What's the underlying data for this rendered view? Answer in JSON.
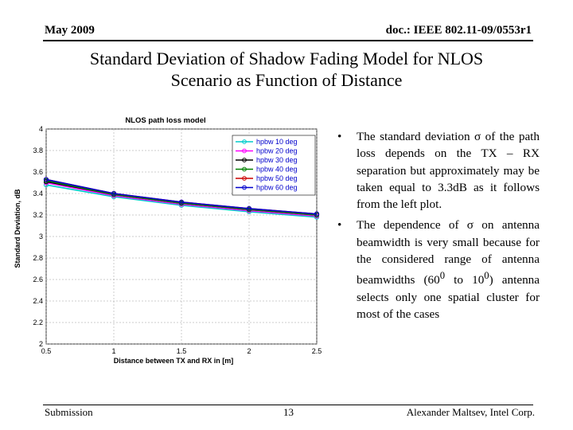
{
  "header": {
    "date": "May 2009",
    "doc_id": "doc.: IEEE 802.11-09/0553r1"
  },
  "title_line1": "Standard Deviation of Shadow Fading Model for NLOS",
  "title_line2": "Scenario as Function of Distance",
  "chart_data": {
    "type": "line",
    "title": "NLOS path loss model",
    "xlabel": "Distance between TX and RX in [m]",
    "ylabel": "Standard Deviation, dB",
    "xlim": [
      0.5,
      2.5
    ],
    "ylim": [
      2,
      4
    ],
    "xticks": [
      "0.5",
      "1",
      "1.5",
      "2",
      "2.5"
    ],
    "yticks": [
      "2",
      "2.2",
      "2.4",
      "2.6",
      "2.8",
      "3",
      "3.2",
      "3.4",
      "3.6",
      "3.8",
      "4"
    ],
    "grid": true,
    "legend_position": "top-right",
    "x": [
      0.5,
      1,
      1.5,
      2,
      2.5
    ],
    "series": [
      {
        "name": "hpbw 10 deg",
        "color": "#00cccc",
        "marker": "circle",
        "values": [
          3.48,
          3.37,
          3.29,
          3.23,
          3.18
        ]
      },
      {
        "name": "hpbw 20 deg",
        "color": "#ff00ff",
        "marker": "circle",
        "values": [
          3.5,
          3.38,
          3.3,
          3.24,
          3.19
        ]
      },
      {
        "name": "hpbw 30 deg",
        "color": "#000000",
        "marker": "circle",
        "values": [
          3.51,
          3.39,
          3.31,
          3.25,
          3.2
        ]
      },
      {
        "name": "hpbw 40 deg",
        "color": "#008000",
        "marker": "circle",
        "values": [
          3.52,
          3.39,
          3.31,
          3.25,
          3.2
        ]
      },
      {
        "name": "hpbw 50 deg",
        "color": "#cc0000",
        "marker": "circle",
        "values": [
          3.53,
          3.4,
          3.32,
          3.26,
          3.21
        ]
      },
      {
        "name": "hpbw 60 deg",
        "color": "#0000cc",
        "marker": "circle",
        "values": [
          3.53,
          3.4,
          3.32,
          3.26,
          3.21
        ]
      }
    ]
  },
  "bullets": {
    "b1": "The standard deviation σ of the path loss depends on the TX – RX separation but approximately may be taken equal to 3.3dB as it follows from the left plot.",
    "b2_part1": "The dependence of σ on antenna beamwidth is very small because for the considered range of antenna beamwidths (60",
    "b2_sup1": "0",
    "b2_part2": " to 10",
    "b2_sup2": "0",
    "b2_part3": ") antenna selects only one spatial cluster for most of the cases"
  },
  "footer": {
    "left": "Submission",
    "page": "13",
    "right": "Alexander Maltsev, Intel Corp."
  }
}
